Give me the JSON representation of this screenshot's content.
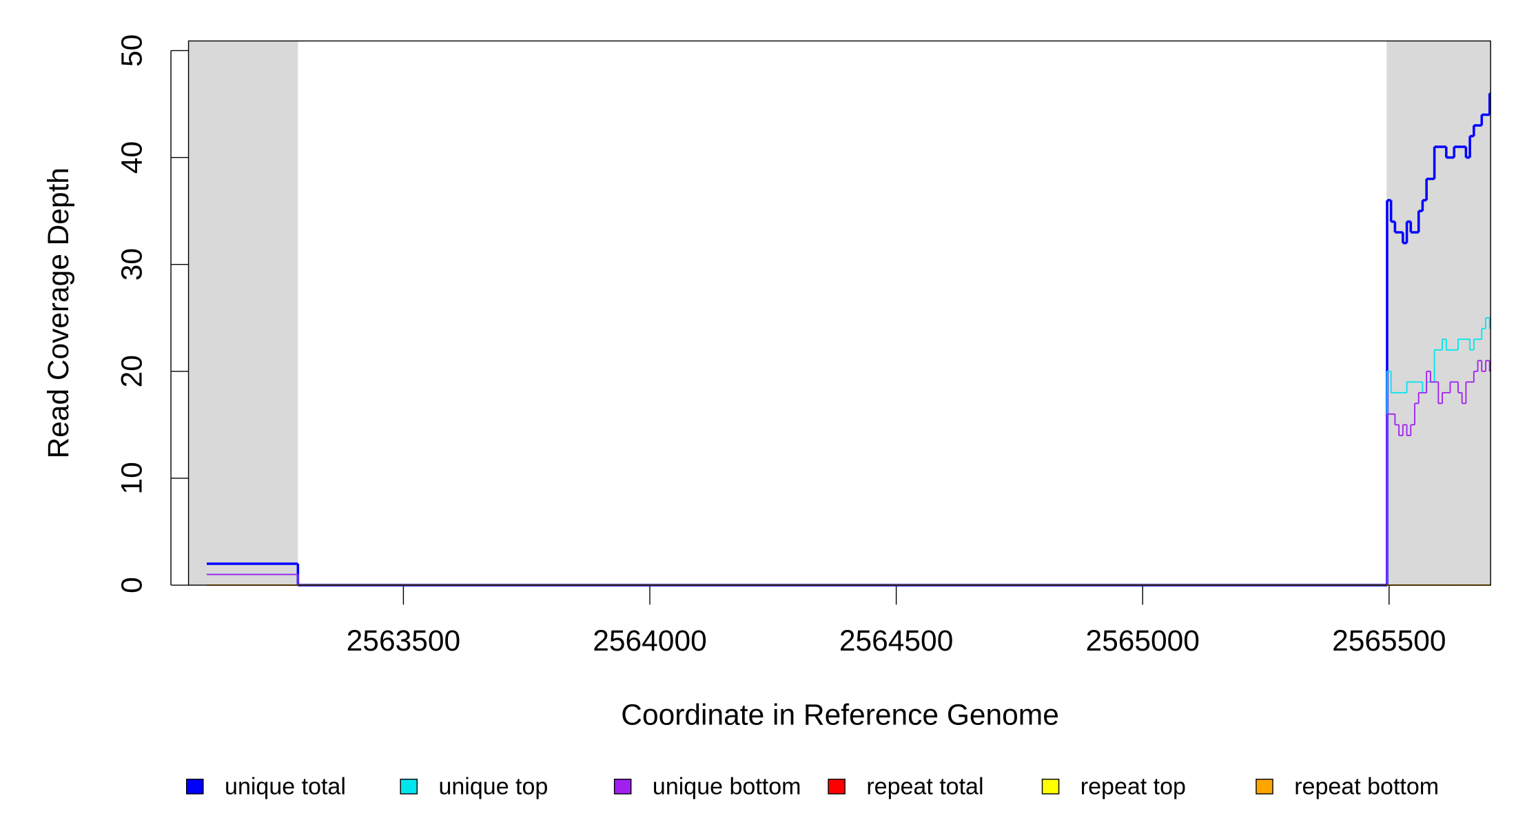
{
  "chart_data": {
    "type": "step",
    "xlabel": "Coordinate in Reference Genome",
    "ylabel": "Read Coverage Depth",
    "xlim": [
      2563064,
      2565706
    ],
    "ylim": [
      0,
      50.9
    ],
    "xticks": [
      2563500,
      2564000,
      2564500,
      2565000,
      2565500
    ],
    "yticks": [
      0,
      10,
      20,
      30,
      40,
      50
    ],
    "shaded_regions": [
      [
        2563064,
        2563286
      ],
      [
        2565495,
        2565706
      ]
    ],
    "shade_color": "#d9d9d9",
    "x": [
      2563101,
      2563286,
      2565496,
      2565504,
      2565512,
      2565520,
      2565528,
      2565536,
      2565544,
      2565552,
      2565560,
      2565568,
      2565576,
      2565584,
      2565592,
      2565600,
      2565608,
      2565616,
      2565624,
      2565632,
      2565640,
      2565648,
      2565656,
      2565664,
      2565672,
      2565680,
      2565688,
      2565696,
      2565704
    ],
    "series": [
      {
        "name": "unique total",
        "color": "#0000ff",
        "values": [
          2,
          0,
          36,
          34,
          33,
          33,
          32,
          34,
          33,
          33,
          35,
          36,
          38,
          38,
          41,
          41,
          41,
          40,
          40,
          41,
          41,
          41,
          40,
          42,
          43,
          43,
          44,
          44,
          46
        ]
      },
      {
        "name": "unique top",
        "color": "#00e5ee",
        "values": [
          1,
          0,
          20,
          18,
          18,
          18,
          18,
          19,
          19,
          19,
          19,
          18,
          19,
          19,
          22,
          22,
          23,
          22,
          22,
          22,
          23,
          23,
          23,
          22,
          23,
          23,
          24,
          25,
          24
        ]
      },
      {
        "name": "unique bottom",
        "color": "#a020f0",
        "values": [
          1,
          0,
          16,
          16,
          15,
          14,
          15,
          14,
          15,
          17,
          18,
          18,
          20,
          19,
          19,
          17,
          18,
          18,
          19,
          19,
          18,
          17,
          19,
          19,
          20,
          21,
          20,
          21,
          20
        ]
      },
      {
        "name": "repeat total",
        "color": "#ff0000",
        "values": [
          0,
          0,
          0,
          0,
          0,
          0,
          0,
          0,
          0,
          0,
          0,
          0,
          0,
          0,
          0,
          0,
          0,
          0,
          0,
          0,
          0,
          0,
          0,
          0,
          0,
          0,
          0,
          0,
          0
        ]
      },
      {
        "name": "repeat top",
        "color": "#ffff00",
        "values": [
          0,
          0,
          0,
          0,
          0,
          0,
          0,
          0,
          0,
          0,
          0,
          0,
          0,
          0,
          0,
          0,
          0,
          0,
          0,
          0,
          0,
          0,
          0,
          0,
          0,
          0,
          0,
          0,
          0
        ]
      },
      {
        "name": "repeat bottom",
        "color": "#ffa500",
        "values": [
          0,
          0,
          0,
          0,
          0,
          0,
          0,
          0,
          0,
          0,
          0,
          0,
          0,
          0,
          0,
          0,
          0,
          0,
          0,
          0,
          0,
          0,
          0,
          0,
          0,
          0,
          0,
          0,
          0
        ]
      }
    ]
  }
}
